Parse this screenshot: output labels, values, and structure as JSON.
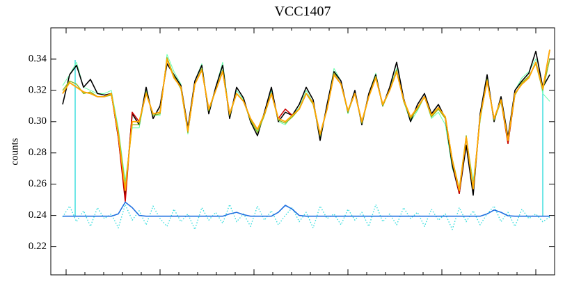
{
  "chart_data": {
    "type": "line",
    "title": "VCC1407",
    "y_label": "counts",
    "categories": [
      null,
      null,
      null,
      null,
      null,
      null,
      null,
      null,
      null,
      null,
      null,
      null,
      null,
      null,
      null,
      null,
      null,
      null,
      null,
      null,
      null,
      null,
      null,
      null,
      null,
      null,
      null,
      null,
      null,
      null,
      null,
      null,
      null,
      null,
      null,
      null,
      null,
      null,
      null,
      null,
      null,
      null,
      null,
      null,
      null,
      null,
      null,
      null,
      null,
      null,
      null,
      null,
      null,
      null,
      null,
      null,
      null,
      null,
      null,
      null,
      null,
      null,
      null,
      null,
      null,
      null,
      null,
      null,
      null,
      null,
      null
    ],
    "ylim": [
      0.202,
      0.36
    ],
    "yticks": [
      0.22,
      0.24,
      0.26,
      0.28,
      {
        "value": 0.3,
        "label": "0.30"
      },
      0.32,
      0.34
    ],
    "series": [
      {
        "color": "#66ffaa",
        "width": 1,
        "values": [
          0.323,
          0.33,
          0.338,
          0.322,
          0.32,
          0.318,
          0.318,
          0.32,
          0.296,
          0.262,
          0.296,
          0.296,
          0.32,
          0.304,
          0.304,
          0.343,
          0.332,
          0.324,
          0.292,
          0.326,
          0.337,
          0.306,
          0.322,
          0.338,
          0.304,
          0.32,
          0.314,
          0.3,
          0.294,
          0.306,
          0.32,
          0.3,
          0.298,
          0.304,
          0.309,
          0.32,
          0.312,
          0.29,
          0.31,
          0.334,
          0.326,
          0.305,
          0.32,
          0.298,
          0.318,
          0.331,
          0.31,
          0.321,
          0.334,
          0.313,
          0.3,
          0.307,
          0.316,
          0.302,
          0.306,
          0.298,
          0.27,
          0.258,
          0.29,
          0.262,
          0.3,
          0.328,
          0.3,
          0.316,
          0.29,
          0.32,
          0.328,
          0.332,
          0.34,
          0.318,
          0.313
        ]
      },
      {
        "color": "#000000",
        "width": 1.6,
        "values": [
          0.311,
          0.33,
          0.336,
          0.322,
          0.327,
          0.318,
          0.317,
          0.318,
          0.29,
          0.252,
          0.305,
          0.298,
          0.322,
          0.302,
          0.31,
          0.337,
          0.33,
          0.323,
          0.296,
          0.326,
          0.336,
          0.305,
          0.322,
          0.336,
          0.302,
          0.322,
          0.315,
          0.3,
          0.291,
          0.306,
          0.322,
          0.3,
          0.306,
          0.304,
          0.311,
          0.322,
          0.314,
          0.288,
          0.311,
          0.332,
          0.326,
          0.306,
          0.32,
          0.298,
          0.318,
          0.33,
          0.31,
          0.322,
          0.338,
          0.315,
          0.3,
          0.311,
          0.318,
          0.305,
          0.311,
          0.302,
          0.272,
          0.254,
          0.285,
          0.253,
          0.305,
          0.33,
          0.3,
          0.316,
          0.29,
          0.32,
          0.326,
          0.331,
          0.345,
          0.322,
          0.33
        ]
      },
      {
        "color": "#88bb22",
        "width": 1.4,
        "values": [
          0.32,
          0.326,
          0.324,
          0.318,
          0.319,
          0.316,
          0.316,
          0.317,
          0.294,
          0.258,
          0.298,
          0.298,
          0.319,
          0.304,
          0.305,
          0.341,
          0.329,
          0.321,
          0.293,
          0.324,
          0.334,
          0.307,
          0.32,
          0.333,
          0.304,
          0.318,
          0.313,
          0.301,
          0.293,
          0.304,
          0.318,
          0.301,
          0.299,
          0.303,
          0.308,
          0.318,
          0.311,
          0.291,
          0.308,
          0.331,
          0.324,
          0.306,
          0.318,
          0.299,
          0.316,
          0.329,
          0.31,
          0.32,
          0.333,
          0.313,
          0.302,
          0.308,
          0.316,
          0.303,
          0.308,
          0.302,
          0.276,
          0.257,
          0.291,
          0.258,
          0.302,
          0.327,
          0.301,
          0.313,
          0.286,
          0.317,
          0.325,
          0.329,
          0.337,
          0.32,
          0.34
        ]
      },
      {
        "color": "#cc0000",
        "width": 1.6,
        "values": [
          0.318,
          0.325,
          0.322,
          0.319,
          0.318,
          0.316,
          0.316,
          0.318,
          0.29,
          0.249,
          0.306,
          0.3,
          0.318,
          0.305,
          0.306,
          0.34,
          0.328,
          0.322,
          0.294,
          0.324,
          0.333,
          0.308,
          0.32,
          0.332,
          0.305,
          0.318,
          0.313,
          0.302,
          0.295,
          0.305,
          0.318,
          0.302,
          0.308,
          0.304,
          0.308,
          0.318,
          0.312,
          0.292,
          0.308,
          0.33,
          0.324,
          0.307,
          0.318,
          0.3,
          0.316,
          0.328,
          0.311,
          0.32,
          0.332,
          0.314,
          0.303,
          0.309,
          0.316,
          0.304,
          0.309,
          0.303,
          0.275,
          0.254,
          0.29,
          0.257,
          0.303,
          0.326,
          0.302,
          0.314,
          0.286,
          0.318,
          0.324,
          0.328,
          0.338,
          0.321,
          0.346
        ]
      },
      {
        "color": "#ffaa00",
        "width": 1.8,
        "values": [
          0.318,
          0.325,
          0.322,
          0.319,
          0.318,
          0.316,
          0.316,
          0.318,
          0.292,
          0.256,
          0.3,
          0.3,
          0.318,
          0.305,
          0.306,
          0.34,
          0.328,
          0.322,
          0.294,
          0.324,
          0.333,
          0.308,
          0.32,
          0.332,
          0.305,
          0.318,
          0.313,
          0.302,
          0.295,
          0.305,
          0.318,
          0.302,
          0.3,
          0.304,
          0.308,
          0.318,
          0.312,
          0.292,
          0.308,
          0.33,
          0.324,
          0.307,
          0.318,
          0.3,
          0.316,
          0.328,
          0.311,
          0.32,
          0.332,
          0.314,
          0.303,
          0.309,
          0.316,
          0.304,
          0.309,
          0.303,
          0.275,
          0.256,
          0.29,
          0.257,
          0.303,
          0.326,
          0.302,
          0.314,
          0.288,
          0.318,
          0.324,
          0.328,
          0.338,
          0.321,
          0.346
        ]
      },
      {
        "color": "#33dddd",
        "width": 1.4,
        "style": "dotted",
        "values": [
          0.239,
          0.246,
          0.236,
          0.243,
          0.233,
          0.245,
          0.238,
          0.241,
          0.232,
          0.247,
          0.237,
          0.243,
          0.234,
          0.246,
          0.238,
          0.233,
          0.244,
          0.236,
          0.241,
          0.231,
          0.245,
          0.237,
          0.242,
          0.235,
          0.247,
          0.236,
          0.241,
          0.233,
          0.246,
          0.237,
          0.243,
          0.234,
          0.24,
          0.245,
          0.236,
          0.242,
          0.232,
          0.246,
          0.238,
          0.241,
          0.234,
          0.244,
          0.237,
          0.242,
          0.233,
          0.247,
          0.236,
          0.241,
          0.234,
          0.245,
          0.238,
          0.242,
          0.233,
          0.244,
          0.237,
          0.241,
          0.231,
          0.245,
          0.236,
          0.243,
          0.234,
          0.241,
          0.246,
          0.236,
          0.242,
          0.233,
          0.244,
          0.238,
          0.241,
          0.236,
          0.239
        ]
      },
      {
        "color": "#1e6fe0",
        "width": 1.6,
        "values": [
          0.2395,
          0.2395,
          0.2395,
          0.2395,
          0.2395,
          0.2395,
          0.2395,
          0.2395,
          0.241,
          0.2485,
          0.245,
          0.24,
          0.2395,
          0.2395,
          0.2395,
          0.2395,
          0.2395,
          0.2395,
          0.2395,
          0.2395,
          0.2395,
          0.2395,
          0.2395,
          0.2395,
          0.241,
          0.242,
          0.2405,
          0.2395,
          0.2395,
          0.2395,
          0.2395,
          0.242,
          0.2465,
          0.244,
          0.24,
          0.2395,
          0.2395,
          0.2395,
          0.2395,
          0.2395,
          0.2395,
          0.2395,
          0.2395,
          0.2395,
          0.2395,
          0.2395,
          0.2395,
          0.2395,
          0.2395,
          0.2395,
          0.2395,
          0.2395,
          0.2395,
          0.2395,
          0.2395,
          0.2395,
          0.2395,
          0.2395,
          0.2395,
          0.2395,
          0.2395,
          0.241,
          0.2435,
          0.242,
          0.2398,
          0.2395,
          0.2395,
          0.2395,
          0.2395,
          0.2395,
          0.2395
        ]
      }
    ]
  }
}
